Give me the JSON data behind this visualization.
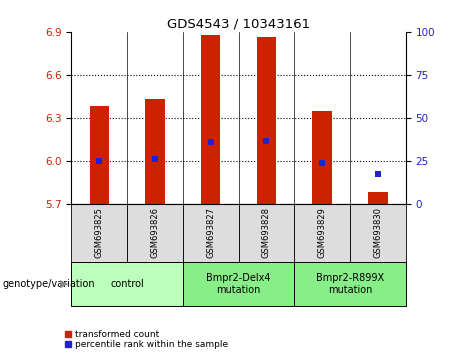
{
  "title": "GDS4543 / 10343161",
  "samples": [
    "GSM693825",
    "GSM693826",
    "GSM693827",
    "GSM693828",
    "GSM693829",
    "GSM693830"
  ],
  "bar_bottoms": [
    5.7,
    5.7,
    5.7,
    5.7,
    5.7,
    5.7
  ],
  "bar_tops": [
    6.38,
    6.43,
    6.88,
    6.865,
    6.35,
    5.78
  ],
  "percentile_values": [
    6.0,
    6.01,
    6.13,
    6.14,
    5.985,
    5.905
  ],
  "ylim_left": [
    5.7,
    6.9
  ],
  "ylim_right": [
    0,
    100
  ],
  "yticks_left": [
    5.7,
    6.0,
    6.3,
    6.6,
    6.9
  ],
  "yticks_right": [
    0,
    25,
    50,
    75,
    100
  ],
  "grid_values": [
    6.0,
    6.3,
    6.6
  ],
  "bar_color": "#CC2200",
  "percentile_color": "#2222CC",
  "group_spans": [
    {
      "start": 0,
      "end": 1,
      "label": "control",
      "color": "#BBFFBB"
    },
    {
      "start": 2,
      "end": 3,
      "label": "Bmpr2-Delx4\nmutation",
      "color": "#88EE88"
    },
    {
      "start": 4,
      "end": 5,
      "label": "Bmpr2-R899X\nmutation",
      "color": "#88EE88"
    }
  ],
  "legend_red_label": "transformed count",
  "legend_blue_label": "percentile rank within the sample",
  "xlabel_area": "genotype/variation",
  "sample_bg": "#DDDDDD",
  "plot_bg": "#FFFFFF",
  "bar_width": 0.35
}
